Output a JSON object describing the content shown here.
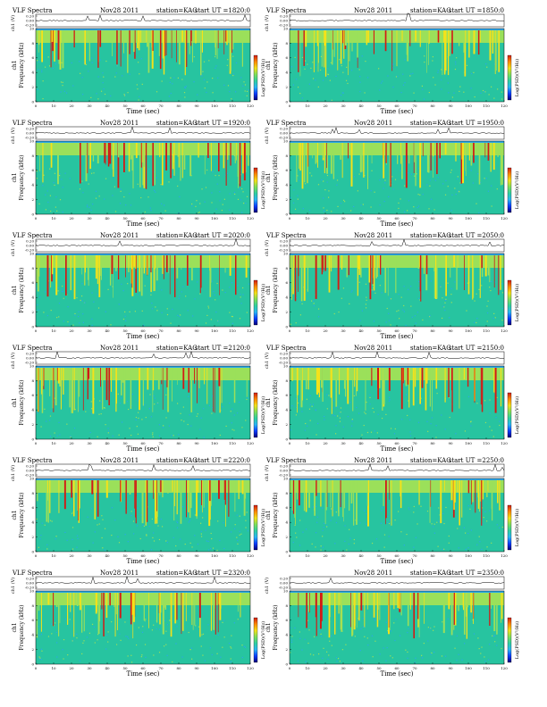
{
  "chart_data": [
    {
      "type": "heatmap",
      "title": "VLF Spectra",
      "date": "Nov28 2011",
      "station": "station=KAG",
      "start": "start  UT  =1820:0",
      "xlabel": "Time  (sec)",
      "ylabel": "Frequency  (kHz)",
      "panel_ylabel": "ch1",
      "trace_ylabel": "ch1 (V)",
      "colorbar_label": "Log(PSD)(V²/Hz)",
      "xlim": [
        0,
        120
      ],
      "ylim": [
        0,
        10
      ],
      "trace_ticks": [
        "0.20",
        "0.00",
        "-0.20"
      ],
      "yticks": [
        "0",
        "2",
        "4",
        "6",
        "8",
        "10"
      ],
      "xticks": [
        "0",
        "10",
        "20",
        "30",
        "40",
        "50",
        "60",
        "70",
        "80",
        "90",
        "100",
        "110",
        "120"
      ]
    },
    {
      "type": "heatmap",
      "title": "VLF Spectra",
      "date": "Nov28 2011",
      "station": "station=KAG",
      "start": "start  UT  =1850:0",
      "xlabel": "Time  (sec)",
      "ylabel": "Frequency  (kHz)",
      "panel_ylabel": "ch1",
      "trace_ylabel": "ch1 (V)",
      "colorbar_label": "Log(PSD)(V²/Hz)",
      "xlim": [
        0,
        120
      ],
      "ylim": [
        0,
        10
      ],
      "trace_ticks": [
        "0.20",
        "0.00",
        "-0.20"
      ],
      "yticks": [
        "0",
        "2",
        "4",
        "6",
        "8",
        "10"
      ],
      "xticks": [
        "0",
        "10",
        "20",
        "30",
        "40",
        "50",
        "60",
        "70",
        "80",
        "90",
        "100",
        "110",
        "120"
      ]
    },
    {
      "type": "heatmap",
      "title": "VLF Spectra",
      "date": "Nov28 2011",
      "station": "station=KAG",
      "start": "start  UT  =1920:0",
      "xlabel": "Time  (sec)",
      "ylabel": "Frequency  (kHz)",
      "panel_ylabel": "ch1",
      "trace_ylabel": "ch1 (V)",
      "colorbar_label": "Log(PSD)(V²/Hz)",
      "xlim": [
        0,
        120
      ],
      "ylim": [
        0,
        10
      ],
      "trace_ticks": [
        "0.20",
        "0.00",
        "-0.20"
      ],
      "yticks": [
        "0",
        "2",
        "4",
        "6",
        "8",
        "10"
      ],
      "xticks": [
        "0",
        "10",
        "20",
        "30",
        "40",
        "50",
        "60",
        "70",
        "80",
        "90",
        "100",
        "110",
        "120"
      ]
    },
    {
      "type": "heatmap",
      "title": "VLF Spectra",
      "date": "Nov28 2011",
      "station": "station=KAG",
      "start": "start  UT  =1950:0",
      "xlabel": "Time  (sec)",
      "ylabel": "Frequency  (kHz)",
      "panel_ylabel": "ch1",
      "trace_ylabel": "ch1 (V)",
      "colorbar_label": "Log(PSD)(V²/Hz)",
      "xlim": [
        0,
        120
      ],
      "ylim": [
        0,
        10
      ],
      "trace_ticks": [
        "0.20",
        "0.00",
        "-0.20"
      ],
      "yticks": [
        "0",
        "2",
        "4",
        "6",
        "8",
        "10"
      ],
      "xticks": [
        "0",
        "10",
        "20",
        "30",
        "40",
        "50",
        "60",
        "70",
        "80",
        "90",
        "100",
        "110",
        "120"
      ]
    },
    {
      "type": "heatmap",
      "title": "VLF Spectra",
      "date": "Nov28 2011",
      "station": "station=KAG",
      "start": "start  UT  =2020:0",
      "xlabel": "Time  (sec)",
      "ylabel": "Frequency  (kHz)",
      "panel_ylabel": "ch1",
      "trace_ylabel": "ch1 (V)",
      "colorbar_label": "Log(PSD)(V²/Hz)",
      "xlim": [
        0,
        120
      ],
      "ylim": [
        0,
        10
      ],
      "trace_ticks": [
        "0.20",
        "0.00",
        "-0.20"
      ],
      "yticks": [
        "0",
        "2",
        "4",
        "6",
        "8",
        "10"
      ],
      "xticks": [
        "0",
        "10",
        "20",
        "30",
        "40",
        "50",
        "60",
        "70",
        "80",
        "90",
        "100",
        "110",
        "120"
      ]
    },
    {
      "type": "heatmap",
      "title": "VLF Spectra",
      "date": "Nov28 2011",
      "station": "station=KAG",
      "start": "start  UT  =2050:0",
      "xlabel": "Time  (sec)",
      "ylabel": "Frequency  (kHz)",
      "panel_ylabel": "ch1",
      "trace_ylabel": "ch1 (V)",
      "colorbar_label": "Log(PSD)(V²/Hz)",
      "xlim": [
        0,
        120
      ],
      "ylim": [
        0,
        10
      ],
      "trace_ticks": [
        "0.20",
        "0.00",
        "-0.20"
      ],
      "yticks": [
        "0",
        "2",
        "4",
        "6",
        "8",
        "10"
      ],
      "xticks": [
        "0",
        "10",
        "20",
        "30",
        "40",
        "50",
        "60",
        "70",
        "80",
        "90",
        "100",
        "110",
        "120"
      ]
    },
    {
      "type": "heatmap",
      "title": "VLF Spectra",
      "date": "Nov28 2011",
      "station": "station=KAG",
      "start": "start  UT  =2120:0",
      "xlabel": "Time  (sec)",
      "ylabel": "Frequency  (kHz)",
      "panel_ylabel": "ch1",
      "trace_ylabel": "ch1 (V)",
      "colorbar_label": "Log(PSD)(V²/Hz)",
      "xlim": [
        0,
        120
      ],
      "ylim": [
        0,
        10
      ],
      "trace_ticks": [
        "0.20",
        "0.00",
        "-0.20"
      ],
      "yticks": [
        "0",
        "2",
        "4",
        "6",
        "8",
        "10"
      ],
      "xticks": [
        "0",
        "10",
        "20",
        "30",
        "40",
        "50",
        "60",
        "70",
        "80",
        "90",
        "100",
        "110",
        "120"
      ]
    },
    {
      "type": "heatmap",
      "title": "VLF Spectra",
      "date": "Nov28 2011",
      "station": "station=KAG",
      "start": "start  UT  =2150:0",
      "xlabel": "Time  (sec)",
      "ylabel": "Frequency  (kHz)",
      "panel_ylabel": "ch1",
      "trace_ylabel": "ch1 (V)",
      "colorbar_label": "Log(PSD)(V²/Hz)",
      "xlim": [
        0,
        120
      ],
      "ylim": [
        0,
        10
      ],
      "trace_ticks": [
        "0.20",
        "0.00",
        "-0.20"
      ],
      "yticks": [
        "0",
        "2",
        "4",
        "6",
        "8",
        "10"
      ],
      "xticks": [
        "0",
        "10",
        "20",
        "30",
        "40",
        "50",
        "60",
        "70",
        "80",
        "90",
        "100",
        "110",
        "120"
      ]
    },
    {
      "type": "heatmap",
      "title": "VLF Spectra",
      "date": "Nov28 2011",
      "station": "station=KAG",
      "start": "start  UT  =2220:0",
      "xlabel": "Time  (sec)",
      "ylabel": "Frequency  (kHz)",
      "panel_ylabel": "ch1",
      "trace_ylabel": "ch1 (V)",
      "colorbar_label": "Log(PSD)(V²/Hz)",
      "xlim": [
        0,
        120
      ],
      "ylim": [
        0,
        10
      ],
      "trace_ticks": [
        "0.20",
        "0.00",
        "-0.20"
      ],
      "yticks": [
        "0",
        "2",
        "4",
        "6",
        "8",
        "10"
      ],
      "xticks": [
        "0",
        "10",
        "20",
        "30",
        "40",
        "50",
        "60",
        "70",
        "80",
        "90",
        "100",
        "110",
        "120"
      ]
    },
    {
      "type": "heatmap",
      "title": "VLF Spectra",
      "date": "Nov28 2011",
      "station": "station=KAG",
      "start": "start  UT  =2250:0",
      "xlabel": "Time  (sec)",
      "ylabel": "Frequency  (kHz)",
      "panel_ylabel": "ch1",
      "trace_ylabel": "ch1 (V)",
      "colorbar_label": "Log(PSD)(V²/Hz)",
      "xlim": [
        0,
        120
      ],
      "ylim": [
        0,
        10
      ],
      "trace_ticks": [
        "0.20",
        "0.00",
        "-0.20"
      ],
      "yticks": [
        "0",
        "2",
        "4",
        "6",
        "8",
        "10"
      ],
      "xticks": [
        "0",
        "10",
        "20",
        "30",
        "40",
        "50",
        "60",
        "70",
        "80",
        "90",
        "100",
        "110",
        "120"
      ]
    },
    {
      "type": "heatmap",
      "title": "VLF Spectra",
      "date": "Nov28 2011",
      "station": "station=KAG",
      "start": "start  UT  =2320:0",
      "xlabel": "Time  (sec)",
      "ylabel": "Frequency  (kHz)",
      "panel_ylabel": "ch1",
      "trace_ylabel": "ch1 (V)",
      "colorbar_label": "Log(PSD)(V²/Hz)",
      "xlim": [
        0,
        120
      ],
      "ylim": [
        0,
        10
      ],
      "trace_ticks": [
        "0.20",
        "0.00",
        "-0.20"
      ],
      "yticks": [
        "0",
        "2",
        "4",
        "6",
        "8",
        "10"
      ],
      "xticks": [
        "0",
        "10",
        "20",
        "30",
        "40",
        "50",
        "60",
        "70",
        "80",
        "90",
        "100",
        "110",
        "120"
      ]
    },
    {
      "type": "heatmap",
      "title": "",
      "date": "Nov28 2011",
      "station": "station=KAG",
      "start": "start  UT  =2350:0",
      "xlabel": "Time  (sec)",
      "ylabel": "Frequency  (kHz)",
      "panel_ylabel": "ch1",
      "trace_ylabel": "ch1 (V)",
      "colorbar_label": "Log(PSD)(V²/Hz)",
      "xlim": [
        0,
        120
      ],
      "ylim": [
        0,
        10
      ],
      "trace_ticks": [
        "0.20",
        "0.00",
        "-0.20"
      ],
      "yticks": [
        "0",
        "2",
        "4",
        "6",
        "8",
        "10"
      ],
      "xticks": [
        "0",
        "10",
        "20",
        "30",
        "40",
        "50",
        "60",
        "70",
        "80",
        "90",
        "100",
        "110",
        "120"
      ]
    }
  ],
  "colors": {
    "background": "#27c4a0",
    "low": "#2aa8e8",
    "mid": "#9be05a",
    "high": "#f4e21a",
    "peak": "#d21a14",
    "colorbar": [
      "#00007a",
      "#0a3cff",
      "#29b6f6",
      "#2fd0a0",
      "#7fe05a",
      "#f4e21a",
      "#ff8a00",
      "#d21a14"
    ]
  }
}
